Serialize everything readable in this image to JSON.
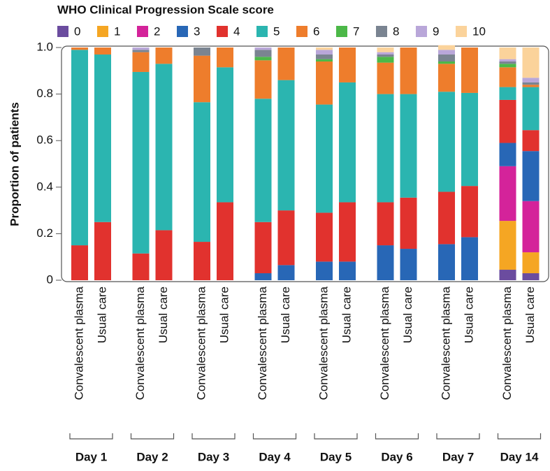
{
  "chart_data": {
    "type": "stacked-bar",
    "legend_title": "WHO Clinical Progression Scale score",
    "y_label": "Proportion of patients",
    "ylim": [
      0,
      1
    ],
    "yticks": [
      0,
      0.2,
      0.4,
      0.6,
      0.8,
      {
        "value": 1,
        "label": "1.0"
      }
    ],
    "categories": [
      "Convalescent plasma",
      "Usual care",
      "Convalescent plasma",
      "Usual care",
      "Convalescent plasma",
      "Usual care",
      "Convalescent plasma",
      "Usual care",
      "Convalescent plasma",
      "Usual care",
      "Convalescent plasma",
      "Usual care",
      "Convalescent plasma",
      "Usual care",
      "Convalescent plasma",
      "Usual care"
    ],
    "groups": [
      "Day 1",
      "Day 2",
      "Day 3",
      "Day 4",
      "Day 5",
      "Day 6",
      "Day 7",
      "Day 14"
    ],
    "series": [
      {
        "name": "0",
        "color": "#6b4c9f",
        "values": [
          0,
          0,
          0,
          0,
          0,
          0,
          0,
          0,
          0,
          0,
          0,
          0,
          0,
          0,
          0.045,
          0.03
        ]
      },
      {
        "name": "1",
        "color": "#f5a623",
        "values": [
          0,
          0,
          0,
          0,
          0,
          0,
          0,
          0,
          0,
          0,
          0,
          0,
          0,
          0,
          0.21,
          0.09
        ]
      },
      {
        "name": "2",
        "color": "#d4239a",
        "values": [
          0,
          0,
          0,
          0,
          0,
          0,
          0,
          0,
          0,
          0,
          0,
          0,
          0,
          0,
          0.235,
          0.22
        ]
      },
      {
        "name": "3",
        "color": "#2867b6",
        "values": [
          0,
          0,
          0,
          0,
          0,
          0,
          0.03,
          0.065,
          0.08,
          0.08,
          0.15,
          0.135,
          0.155,
          0.185,
          0.1,
          0.215
        ]
      },
      {
        "name": "4",
        "color": "#e1322e",
        "values": [
          0.15,
          0.25,
          0.115,
          0.215,
          0.165,
          0.335,
          0.22,
          0.235,
          0.21,
          0.255,
          0.185,
          0.22,
          0.225,
          0.22,
          0.185,
          0.09
        ]
      },
      {
        "name": "5",
        "color": "#2bb5b0",
        "values": [
          0.84,
          0.72,
          0.78,
          0.715,
          0.6,
          0.58,
          0.53,
          0.56,
          0.465,
          0.515,
          0.465,
          0.445,
          0.43,
          0.4,
          0.055,
          0.185
        ]
      },
      {
        "name": "6",
        "color": "#ee7d2c",
        "values": [
          0.01,
          0.03,
          0.085,
          0.07,
          0.2,
          0.085,
          0.165,
          0.14,
          0.185,
          0.15,
          0.135,
          0.2,
          0.12,
          0.195,
          0.085,
          0.01
        ]
      },
      {
        "name": "7",
        "color": "#4cb848",
        "values": [
          0,
          0,
          0,
          0,
          0,
          0,
          0.015,
          0,
          0.01,
          0,
          0.025,
          0,
          0.01,
          0,
          0.015,
          0
        ]
      },
      {
        "name": "8",
        "color": "#7a8491",
        "values": [
          0,
          0,
          0.01,
          0,
          0.035,
          0,
          0.03,
          0,
          0.02,
          0,
          0.01,
          0,
          0.03,
          0,
          0.01,
          0.01
        ]
      },
      {
        "name": "9",
        "color": "#b9a7d9",
        "values": [
          0,
          0,
          0.01,
          0,
          0,
          0,
          0.01,
          0,
          0.02,
          0,
          0.01,
          0,
          0.02,
          0,
          0.01,
          0.02
        ]
      },
      {
        "name": "10",
        "color": "#fbd39b",
        "values": [
          0,
          0,
          0,
          0,
          0,
          0,
          0,
          0,
          0.01,
          0,
          0.02,
          0,
          0.02,
          0,
          0.05,
          0.13
        ]
      }
    ]
  }
}
